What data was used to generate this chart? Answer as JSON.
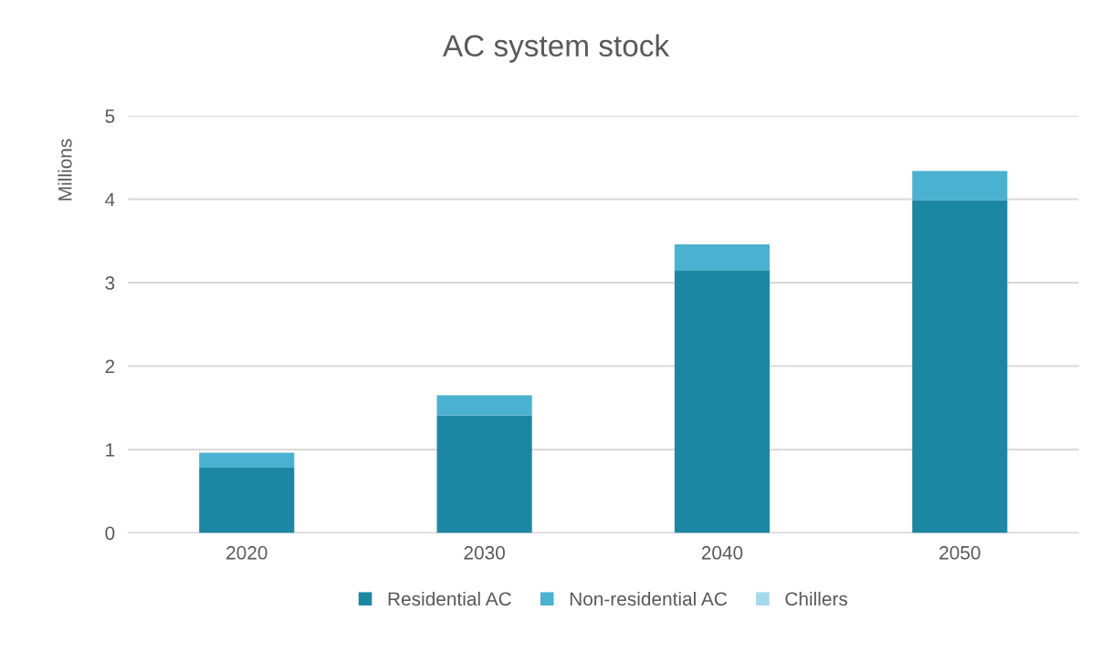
{
  "chart_data": {
    "type": "bar",
    "title": "AC system stock",
    "ylabel": "Millions",
    "stacked": true,
    "categories": [
      "2020",
      "2030",
      "2040",
      "2050"
    ],
    "series": [
      {
        "name": "Residential AC",
        "color": "#1b87a2",
        "values": [
          0.78,
          1.41,
          3.15,
          3.99
        ]
      },
      {
        "name": "Non-residential AC",
        "color": "#4bb1d0",
        "values": [
          0.18,
          0.24,
          0.31,
          0.35
        ]
      },
      {
        "name": "Chillers",
        "color": "#a6d8ec",
        "values": [
          null,
          null,
          null,
          null
        ]
      }
    ],
    "ylim": [
      0,
      5
    ],
    "yticks": [
      0,
      1,
      2,
      3,
      4,
      5
    ],
    "grid": "y",
    "legend": "bottom"
  }
}
